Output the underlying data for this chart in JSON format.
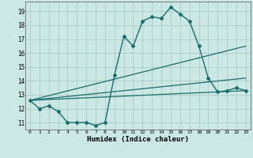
{
  "xlabel": "Humidex (Indice chaleur)",
  "xlim": [
    -0.5,
    23.5
  ],
  "ylim": [
    10.5,
    19.7
  ],
  "yticks": [
    11,
    12,
    13,
    14,
    15,
    16,
    17,
    18,
    19
  ],
  "xticks": [
    0,
    1,
    2,
    3,
    4,
    5,
    6,
    7,
    8,
    9,
    10,
    11,
    12,
    13,
    14,
    15,
    16,
    17,
    18,
    19,
    20,
    21,
    22,
    23
  ],
  "background_color": "#cce8e4",
  "grid_color": "#aaccc8",
  "line_color": "#1a6b6b",
  "line_data": [
    {
      "x": [
        0,
        1,
        2,
        3,
        4,
        5,
        6,
        7,
        8,
        9,
        10,
        11,
        12,
        13,
        14,
        15,
        16,
        17,
        18,
        19,
        20,
        21,
        22,
        23
      ],
      "y": [
        12.6,
        12.0,
        12.2,
        11.8,
        11.0,
        11.0,
        11.0,
        10.8,
        11.0,
        14.4,
        17.2,
        16.5,
        18.3,
        18.6,
        18.5,
        19.3,
        18.8,
        18.3,
        16.5,
        14.2,
        13.2,
        13.3,
        13.5,
        13.3
      ],
      "marker": "D",
      "ms": 2.5,
      "lw": 1.0
    },
    {
      "x": [
        0,
        23
      ],
      "y": [
        12.6,
        16.5
      ],
      "marker": null,
      "ms": 0,
      "lw": 0.9
    },
    {
      "x": [
        0,
        23
      ],
      "y": [
        12.6,
        14.2
      ],
      "marker": null,
      "ms": 0,
      "lw": 0.9
    },
    {
      "x": [
        0,
        23
      ],
      "y": [
        12.6,
        13.3
      ],
      "marker": null,
      "ms": 0,
      "lw": 0.9
    }
  ]
}
